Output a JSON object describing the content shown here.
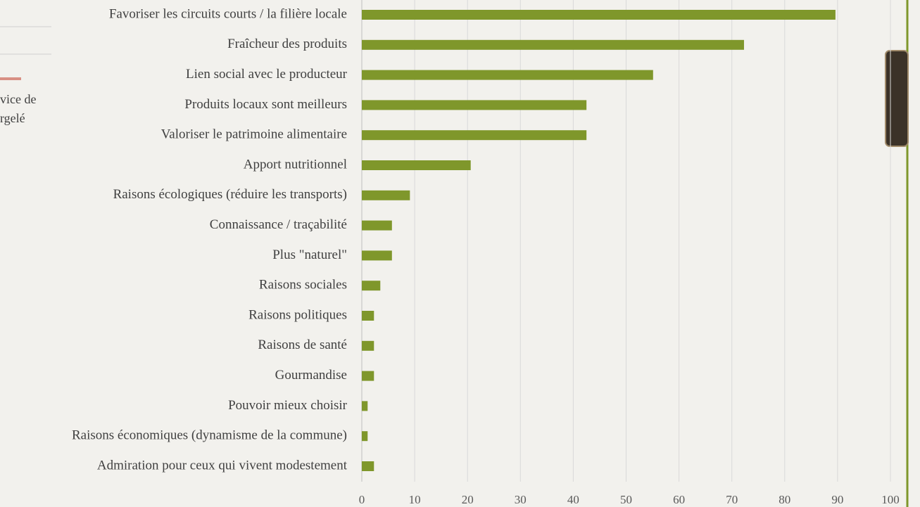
{
  "side_text": [
    "vice de",
    "rgelé"
  ],
  "chart_data": {
    "type": "barh",
    "categories": [
      "Favoriser les circuits courts / la filière locale",
      "Fraîcheur des produits",
      "Lien social avec le producteur",
      "Produits locaux sont meilleurs",
      "Valoriser le patrimoine alimentaire",
      "Apport nutritionnel",
      "Raisons écologiques (réduire les transports)",
      "Connaissance / traçabilité",
      "Plus \"naturel\"",
      "Raisons sociales",
      "Raisons politiques",
      "Raisons de santé",
      "Gourmandise",
      "Pouvoir mieux choisir",
      "Raisons économiques (dynamisme de la commune)",
      "Admiration pour ceux qui vivent modestement"
    ],
    "values": [
      89.6,
      72.3,
      55.1,
      42.5,
      42.5,
      20.6,
      9.1,
      5.7,
      5.7,
      3.5,
      2.3,
      2.3,
      2.3,
      1.1,
      1.1,
      2.3
    ],
    "color": "#7f972b",
    "xlim": [
      0,
      100
    ],
    "xticks": [
      0,
      10,
      20,
      30,
      40,
      50,
      60,
      70,
      80,
      90,
      100
    ],
    "grid": true
  }
}
